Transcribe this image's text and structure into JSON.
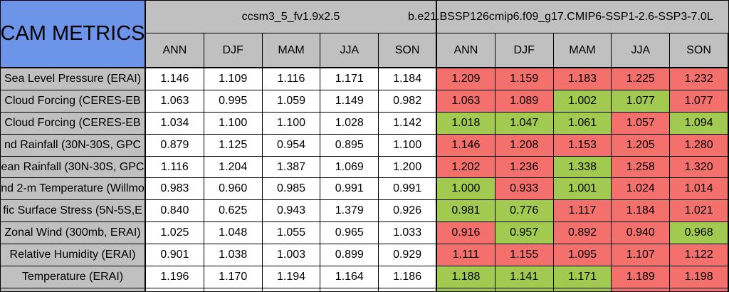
{
  "chart_data": {
    "type": "table",
    "title": "CAM METRICS",
    "column_groups": [
      {
        "name": "ccsm3_5_fv1.9x2.5"
      },
      {
        "name": "b.e21.BSSP126cmip6.f09_g17.CMIP6-SSP1-2.6-SSP3-7.0L"
      }
    ],
    "seasons": [
      "ANN",
      "DJF",
      "MAM",
      "JJA",
      "SON"
    ],
    "rows": [
      {
        "label": "Sea Level Pressure (ERAI)",
        "base": [
          "1.146",
          "1.109",
          "1.116",
          "1.171",
          "1.184"
        ],
        "test": [
          {
            "v": "1.209",
            "c": "red"
          },
          {
            "v": "1.159",
            "c": "red"
          },
          {
            "v": "1.183",
            "c": "red"
          },
          {
            "v": "1.225",
            "c": "red"
          },
          {
            "v": "1.232",
            "c": "red"
          }
        ]
      },
      {
        "label": "Cloud Forcing (CERES-EB",
        "base": [
          "1.063",
          "0.995",
          "1.059",
          "1.149",
          "0.982"
        ],
        "test": [
          {
            "v": "1.063",
            "c": "red"
          },
          {
            "v": "1.089",
            "c": "red"
          },
          {
            "v": "1.002",
            "c": "green"
          },
          {
            "v": "1.077",
            "c": "green"
          },
          {
            "v": "1.077",
            "c": "red"
          }
        ]
      },
      {
        "label": "Cloud Forcing (CERES-EB",
        "base": [
          "1.034",
          "1.100",
          "1.100",
          "1.028",
          "1.142"
        ],
        "test": [
          {
            "v": "1.018",
            "c": "green"
          },
          {
            "v": "1.047",
            "c": "green"
          },
          {
            "v": "1.061",
            "c": "green"
          },
          {
            "v": "1.057",
            "c": "red"
          },
          {
            "v": "1.094",
            "c": "green"
          }
        ]
      },
      {
        "label": "nd Rainfall (30N-30S, GPC",
        "base": [
          "0.879",
          "1.125",
          "0.954",
          "0.895",
          "1.100"
        ],
        "test": [
          {
            "v": "1.146",
            "c": "red"
          },
          {
            "v": "1.208",
            "c": "red"
          },
          {
            "v": "1.153",
            "c": "red"
          },
          {
            "v": "1.205",
            "c": "red"
          },
          {
            "v": "1.280",
            "c": "red"
          }
        ]
      },
      {
        "label": "ean Rainfall (30N-30S, GPC",
        "base": [
          "1.116",
          "1.204",
          "1.387",
          "1.069",
          "1.200"
        ],
        "test": [
          {
            "v": "1.202",
            "c": "red"
          },
          {
            "v": "1.236",
            "c": "red"
          },
          {
            "v": "1.338",
            "c": "green"
          },
          {
            "v": "1.258",
            "c": "red"
          },
          {
            "v": "1.320",
            "c": "red"
          }
        ]
      },
      {
        "label": "nd 2-m Temperature (Willmo",
        "base": [
          "0.983",
          "0.960",
          "0.985",
          "0.991",
          "0.991"
        ],
        "test": [
          {
            "v": "1.000",
            "c": "green"
          },
          {
            "v": "0.933",
            "c": "red"
          },
          {
            "v": "1.001",
            "c": "green"
          },
          {
            "v": "1.024",
            "c": "red"
          },
          {
            "v": "1.014",
            "c": "red"
          }
        ]
      },
      {
        "label": "fic Surface Stress (5N-5S,E",
        "base": [
          "0.840",
          "0.625",
          "0.943",
          "1.379",
          "0.926"
        ],
        "test": [
          {
            "v": "0.981",
            "c": "green"
          },
          {
            "v": "0.776",
            "c": "green"
          },
          {
            "v": "1.117",
            "c": "red"
          },
          {
            "v": "1.184",
            "c": "red"
          },
          {
            "v": "1.021",
            "c": "red"
          }
        ]
      },
      {
        "label": "Zonal Wind (300mb, ERAI)",
        "base": [
          "1.025",
          "1.048",
          "1.055",
          "0.965",
          "1.033"
        ],
        "test": [
          {
            "v": "0.916",
            "c": "red"
          },
          {
            "v": "0.957",
            "c": "green"
          },
          {
            "v": "0.892",
            "c": "red"
          },
          {
            "v": "0.940",
            "c": "red"
          },
          {
            "v": "0.968",
            "c": "green"
          }
        ]
      },
      {
        "label": "Relative Humidity (ERAI)",
        "base": [
          "0.901",
          "1.038",
          "1.003",
          "0.899",
          "0.929"
        ],
        "test": [
          {
            "v": "1.111",
            "c": "red"
          },
          {
            "v": "1.155",
            "c": "red"
          },
          {
            "v": "1.095",
            "c": "red"
          },
          {
            "v": "1.107",
            "c": "red"
          },
          {
            "v": "1.122",
            "c": "red"
          }
        ]
      },
      {
        "label": "Temperature (ERAI)",
        "base": [
          "1.196",
          "1.170",
          "1.194",
          "1.164",
          "1.186"
        ],
        "test": [
          {
            "v": "1.188",
            "c": "green"
          },
          {
            "v": "1.141",
            "c": "green"
          },
          {
            "v": "1.171",
            "c": "green"
          },
          {
            "v": "1.189",
            "c": "red"
          },
          {
            "v": "1.198",
            "c": "red"
          }
        ]
      }
    ],
    "partial_next_row": {
      "left_colors": [
        "white",
        "white",
        "white",
        "white",
        "white"
      ],
      "right_colors": [
        "green",
        "green",
        "green",
        "red",
        "red"
      ]
    }
  },
  "colors": {
    "title_blue": "#6c95ea",
    "header_gray": "#c0c0c0",
    "cell_white": "#ffffff",
    "worse_red": "#f4706d",
    "better_green": "#a2ca51",
    "border_black": "#000000"
  }
}
